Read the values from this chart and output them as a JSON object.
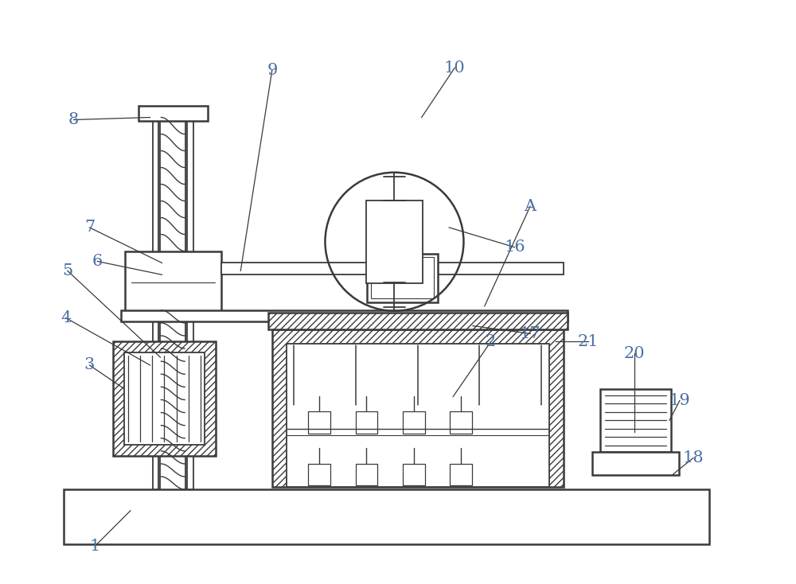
{
  "bg_color": "#ffffff",
  "line_color": "#3a3a3a",
  "label_color": "#4a6fa5",
  "figsize": [
    10.0,
    7.34
  ],
  "dpi": 100
}
